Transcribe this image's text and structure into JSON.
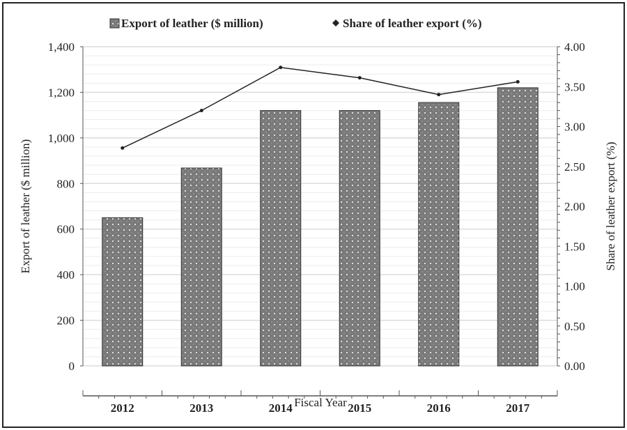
{
  "chart_data": {
    "type": "bar",
    "title": "",
    "xlabel": "Fiscal Year",
    "ylabel": "Export of leather ($ million)",
    "y2label": "Share of leather export (%)",
    "categories": [
      "2012",
      "2013",
      "2014",
      "2015",
      "2016",
      "2017"
    ],
    "series": [
      {
        "name": "Export of leather ($ million)",
        "type": "bar",
        "axis": "left",
        "values": [
          650,
          868,
          1120,
          1120,
          1155,
          1220
        ]
      },
      {
        "name": "Share of leather export (%)",
        "type": "line",
        "axis": "right",
        "values": [
          2.73,
          3.2,
          3.74,
          3.61,
          3.4,
          3.56
        ]
      }
    ],
    "ylim": [
      0,
      1400
    ],
    "y2lim": [
      0,
      4
    ],
    "yticks": [
      "0",
      "200",
      "400",
      "600",
      "800",
      "1,000",
      "1,200",
      "1,400"
    ],
    "y2ticks": [
      "0.00",
      "0.50",
      "1.00",
      "1.50",
      "2.00",
      "2.50",
      "3.00",
      "3.50",
      "4.00"
    ],
    "legend": {
      "position": "top",
      "entries": [
        "Export of leather ($ million)",
        "Share of leather export (%)"
      ]
    },
    "grid": true,
    "colors": {
      "bar": "#7a7a7a",
      "line": "#222222",
      "grid": "#e2e2e2"
    }
  }
}
